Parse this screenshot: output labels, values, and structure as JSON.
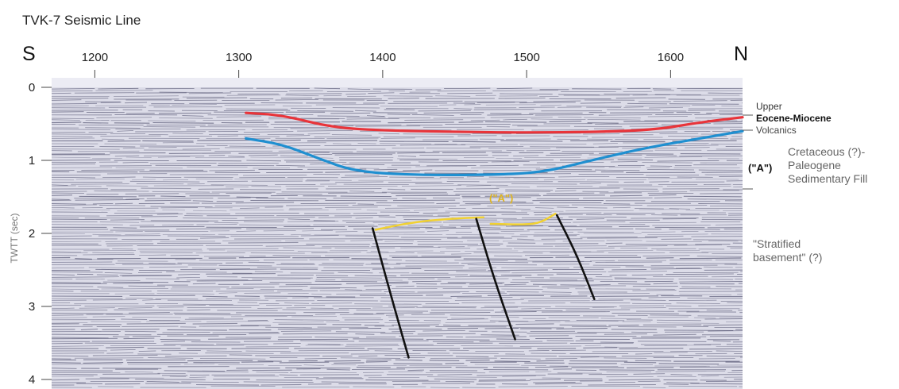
{
  "title": "TVK-7 Seismic Line",
  "direction": {
    "left": "S",
    "right": "N"
  },
  "x_axis": {
    "ticks": [
      "1200",
      "1300",
      "1400",
      "1500",
      "1600"
    ],
    "range": [
      1170,
      1650
    ]
  },
  "y_axis": {
    "label": "TWTT (sec)",
    "ticks": [
      "0",
      "1",
      "2",
      "3",
      "4"
    ],
    "range": [
      0,
      4
    ]
  },
  "horizons": [
    {
      "key": "red",
      "color": "#e8343a",
      "points": [
        [
          1305,
          0.35
        ],
        [
          1330,
          0.38
        ],
        [
          1365,
          0.55
        ],
        [
          1400,
          0.59
        ],
        [
          1450,
          0.61
        ],
        [
          1500,
          0.62
        ],
        [
          1550,
          0.61
        ],
        [
          1590,
          0.58
        ],
        [
          1620,
          0.48
        ],
        [
          1650,
          0.41
        ]
      ]
    },
    {
      "key": "blue",
      "color": "#1f8fd0",
      "points": [
        [
          1305,
          0.7
        ],
        [
          1330,
          0.78
        ],
        [
          1355,
          0.97
        ],
        [
          1380,
          1.15
        ],
        [
          1420,
          1.2
        ],
        [
          1470,
          1.2
        ],
        [
          1510,
          1.17
        ],
        [
          1545,
          1.0
        ],
        [
          1580,
          0.84
        ],
        [
          1620,
          0.7
        ],
        [
          1650,
          0.6
        ]
      ]
    },
    {
      "key": "yellow-1",
      "color": "#f1d132",
      "points": [
        [
          1395,
          1.95
        ],
        [
          1420,
          1.85
        ],
        [
          1445,
          1.8
        ],
        [
          1470,
          1.78
        ]
      ]
    },
    {
      "key": "yellow-2",
      "color": "#f1d132",
      "points": [
        [
          1475,
          1.87
        ],
        [
          1500,
          1.88
        ],
        [
          1510,
          1.85
        ],
        [
          1520,
          1.73
        ]
      ]
    }
  ],
  "faults": [
    {
      "key": "fault-1",
      "points": [
        [
          1393,
          1.93
        ],
        [
          1405,
          2.8
        ],
        [
          1418,
          3.7
        ]
      ]
    },
    {
      "key": "fault-2",
      "points": [
        [
          1465,
          1.8
        ],
        [
          1477,
          2.6
        ],
        [
          1492,
          3.45
        ]
      ]
    },
    {
      "key": "fault-3",
      "points": [
        [
          1521,
          1.75
        ],
        [
          1535,
          2.3
        ],
        [
          1547,
          2.9
        ]
      ]
    }
  ],
  "annotations": {
    "upper": "Upper",
    "eocene_miocene": "Eocene-Miocene",
    "volcanics": "Volcanics",
    "a_label": "(\"A\")",
    "a_side": "(\"A\")",
    "cretaceous_lines": [
      "Cretaceous (?)-",
      "Paleogene",
      "Sedimentary Fill"
    ],
    "basement_lines": [
      "\"Stratified",
      "basement\" (?)"
    ]
  },
  "colors": {
    "seismic_base": "#dcdce8",
    "reflector": "#3e3e5e",
    "fault": "#111111",
    "a_text": "#e0b51e"
  }
}
